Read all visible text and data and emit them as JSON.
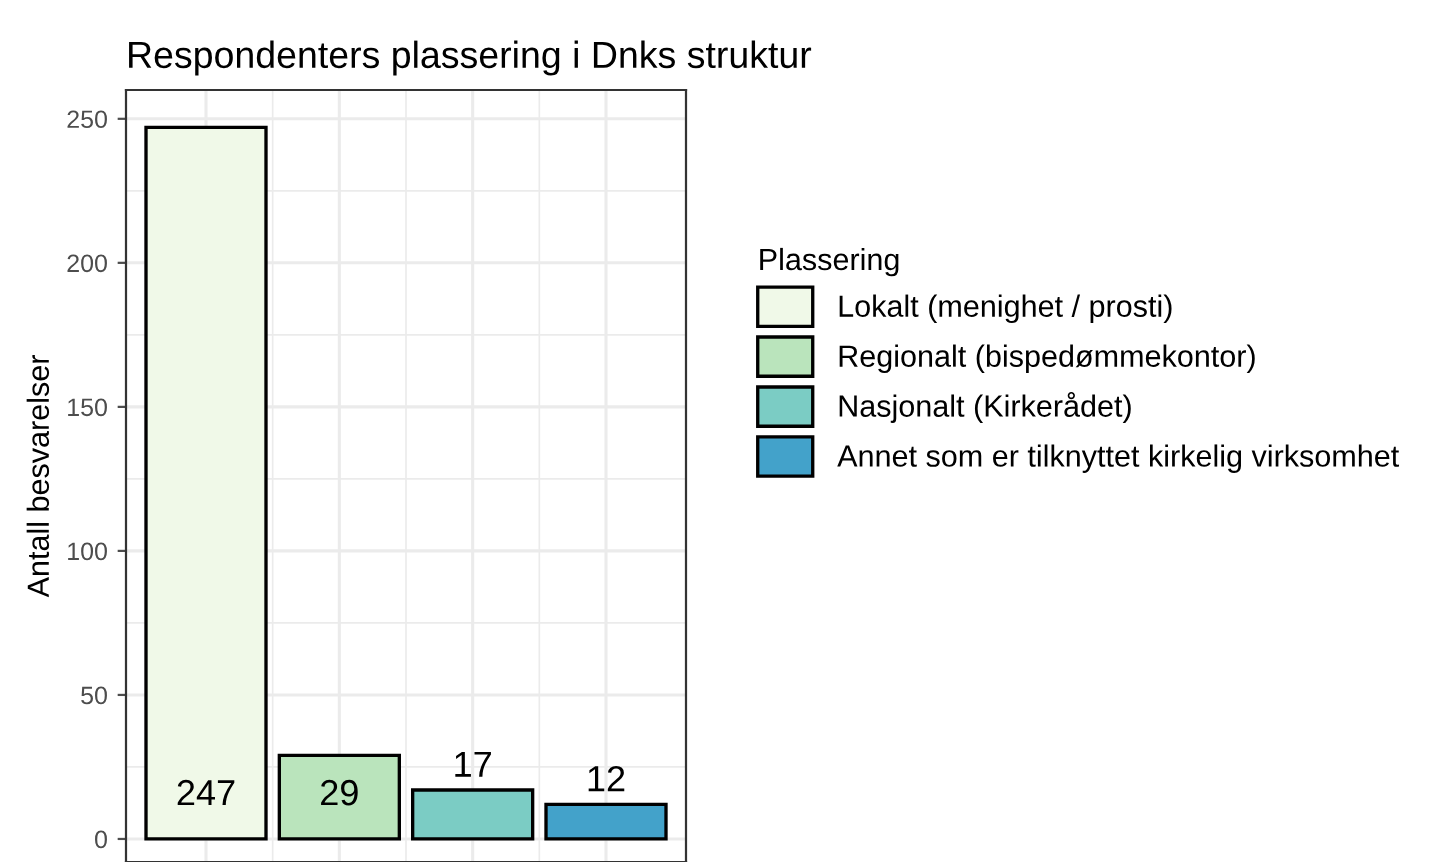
{
  "chart_data": {
    "type": "bar",
    "title": "Respondenters plassering i Dnks struktur",
    "ylabel": "Antall besvarelser",
    "legend_title": "Plassering",
    "categories": [
      null,
      null,
      null,
      null
    ],
    "series": [
      {
        "name": "Lokalt (menighet / prosti)",
        "color": "#f0f9e8",
        "values": [
          247,
          null,
          null,
          null
        ]
      },
      {
        "name": "Regionalt (bispedømmekontor)",
        "color": "#bae4bc",
        "values": [
          null,
          29,
          null,
          null
        ]
      },
      {
        "name": "Nasjonalt (Kirkerådet)",
        "color": "#7bccc4",
        "values": [
          null,
          null,
          17,
          null
        ]
      },
      {
        "name": "Annet som er tilknyttet kirkelig virksomhet",
        "color": "#43a2ca",
        "values": [
          null,
          null,
          null,
          12
        ]
      }
    ],
    "ylim": [
      -8,
      260
    ],
    "yticks": [
      0,
      50,
      100,
      150,
      200,
      250
    ],
    "grid": true,
    "legend": "right",
    "data_labels": true,
    "tick_labels": "y"
  }
}
